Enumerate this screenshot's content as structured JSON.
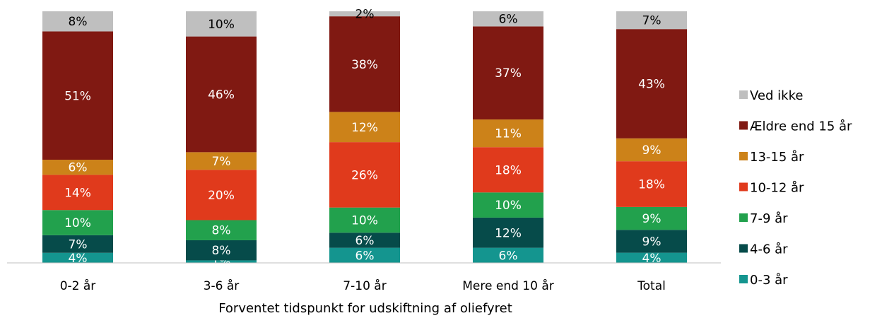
{
  "chart_data": {
    "type": "bar",
    "stacked": true,
    "xlabel": "Forventet tidspunkt for udskiftning af oliefyret",
    "ylabel": "",
    "ylim": [
      0,
      100
    ],
    "grid": false,
    "legend_position": "right",
    "categories": [
      "0-2 år",
      "3-6 år",
      "7-10 år",
      "Mere end 10 år",
      "Total"
    ],
    "series": [
      {
        "name": "0-3 år",
        "color": "#14958f",
        "values": [
          4,
          1,
          6,
          6,
          4
        ],
        "labels": [
          "4%",
          "1%",
          "6%",
          "6%",
          "4%"
        ]
      },
      {
        "name": "4-6 år",
        "color": "#064b4a",
        "values": [
          7,
          8,
          6,
          12,
          9
        ],
        "labels": [
          "7%",
          "8%",
          "6%",
          "12%",
          "9%"
        ]
      },
      {
        "name": "7-9 år",
        "color": "#22a14d",
        "values": [
          10,
          8,
          10,
          10,
          9
        ],
        "labels": [
          "10%",
          "8%",
          "10%",
          "10%",
          "9%"
        ]
      },
      {
        "name": "10-12 år",
        "color": "#e03a1c",
        "values": [
          14,
          20,
          26,
          18,
          18
        ],
        "labels": [
          "14%",
          "20%",
          "26%",
          "18%",
          "18%"
        ]
      },
      {
        "name": "13-15 år",
        "color": "#cc8219",
        "values": [
          6,
          7,
          12,
          11,
          9
        ],
        "labels": [
          "6%",
          "7%",
          "12%",
          "11%",
          "9%"
        ]
      },
      {
        "name": "Ældre end 15 år",
        "color": "#801912",
        "values": [
          51,
          46,
          38,
          37,
          43
        ],
        "labels": [
          "51%",
          "46%",
          "38%",
          "37%",
          "43%"
        ]
      },
      {
        "name": "Ved ikke",
        "color": "#bfbfbf",
        "values": [
          8,
          10,
          2,
          6,
          7
        ],
        "labels": [
          "8%",
          "10%",
          "2%",
          "6%",
          "7%"
        ]
      }
    ],
    "legend_order": [
      "Ved ikke",
      "Ældre end 15 år",
      "13-15 år",
      "10-12 år",
      "7-9 år",
      "4-6 år",
      "0-3 år"
    ]
  }
}
